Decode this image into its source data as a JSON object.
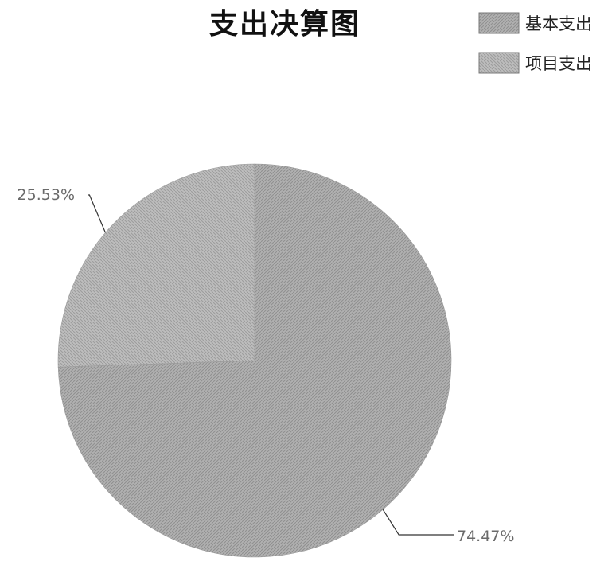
{
  "chart_data": {
    "type": "pie",
    "title": "支出决算图",
    "legend_position": "top-right",
    "categories": [
      "基本支出",
      "项目支出"
    ],
    "values": [
      74.47,
      25.53
    ],
    "value_labels": [
      "74.47%",
      "25.53%"
    ],
    "unit": "%",
    "colors": [
      "#a9a9a9",
      "#b5b5b5"
    ],
    "start_angle_deg": -90
  }
}
